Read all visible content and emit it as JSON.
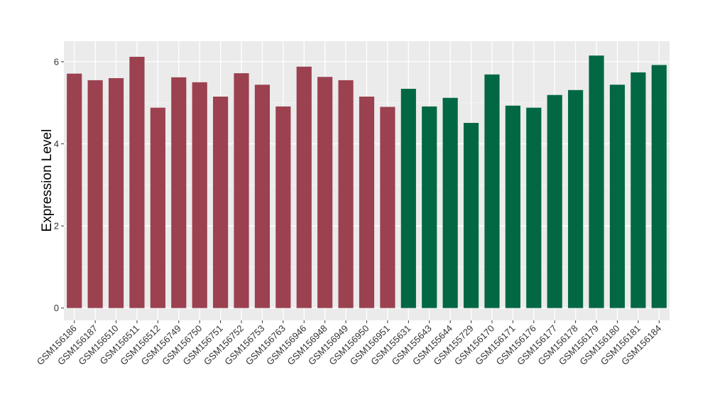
{
  "chart_data": {
    "type": "bar",
    "title": "",
    "xlabel": "",
    "ylabel": "Expression Level",
    "ylim": [
      -0.3,
      6.5
    ],
    "yticks": [
      0,
      2,
      4,
      6
    ],
    "grid": true,
    "legend": "none",
    "categories": [
      "GSM156186",
      "GSM156187",
      "GSM156510",
      "GSM156511",
      "GSM156512",
      "GSM156749",
      "GSM156750",
      "GSM156751",
      "GSM156752",
      "GSM156753",
      "GSM156763",
      "GSM156946",
      "GSM156948",
      "GSM156949",
      "GSM156950",
      "GSM156951",
      "GSM155631",
      "GSM155643",
      "GSM155644",
      "GSM155729",
      "GSM156170",
      "GSM156171",
      "GSM156176",
      "GSM156177",
      "GSM156178",
      "GSM156179",
      "GSM156180",
      "GSM156181",
      "GSM156184"
    ],
    "values": [
      5.71,
      5.55,
      5.6,
      6.12,
      4.88,
      5.62,
      5.5,
      5.15,
      5.72,
      5.44,
      4.91,
      5.88,
      5.63,
      5.55,
      5.15,
      4.9,
      5.34,
      4.91,
      5.12,
      4.51,
      5.69,
      4.93,
      4.88,
      5.19,
      5.31,
      6.15,
      5.44,
      5.74,
      5.92
    ],
    "groups": [
      0,
      0,
      0,
      0,
      0,
      0,
      0,
      0,
      0,
      0,
      0,
      0,
      0,
      0,
      0,
      0,
      1,
      1,
      1,
      1,
      1,
      1,
      1,
      1,
      1,
      1,
      1,
      1,
      1
    ],
    "group_colors": [
      "#9b4150",
      "#016843"
    ]
  },
  "style": {
    "panel_bg": "#ebebeb",
    "grid_major": "#ffffff",
    "grid_minor": "#f5f5f5",
    "tick_color": "#333333"
  }
}
